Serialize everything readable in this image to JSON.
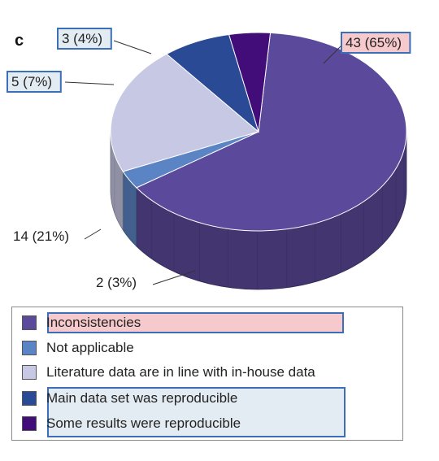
{
  "panel_letter": "c",
  "chart_data": {
    "type": "pie",
    "title": "",
    "categories": [
      "Inconsistencies",
      "Not applicable",
      "Literature data are in line with in-house data",
      "Main data set was reproducible",
      "Some results were reproducible"
    ],
    "values": [
      43,
      2,
      14,
      5,
      3
    ],
    "percentages": [
      65,
      3,
      21,
      7,
      4
    ],
    "data_labels": [
      "43 (65%)",
      "2 (3%)",
      "14 (21%)",
      "5 (7%)",
      "3 (4%)"
    ],
    "colors": [
      "#5b4a9c",
      "#5b84c4",
      "#c6c8e4",
      "#2b4a96",
      "#420d78"
    ],
    "highlighted_labels": [
      "43 (65%)",
      "5 (7%)",
      "3 (4%)"
    ],
    "legend_position": "bottom"
  },
  "legend": {
    "items": [
      {
        "label": "Inconsistencies",
        "color": "#5b4a9c"
      },
      {
        "label": "Not applicable",
        "color": "#5b84c4"
      },
      {
        "label": "Literature data are in line with in-house data",
        "color": "#c6c8e4"
      },
      {
        "label": "Main data set was reproducible",
        "color": "#2b4a96"
      },
      {
        "label": "Some results were reproducible",
        "color": "#420d78"
      }
    ]
  }
}
